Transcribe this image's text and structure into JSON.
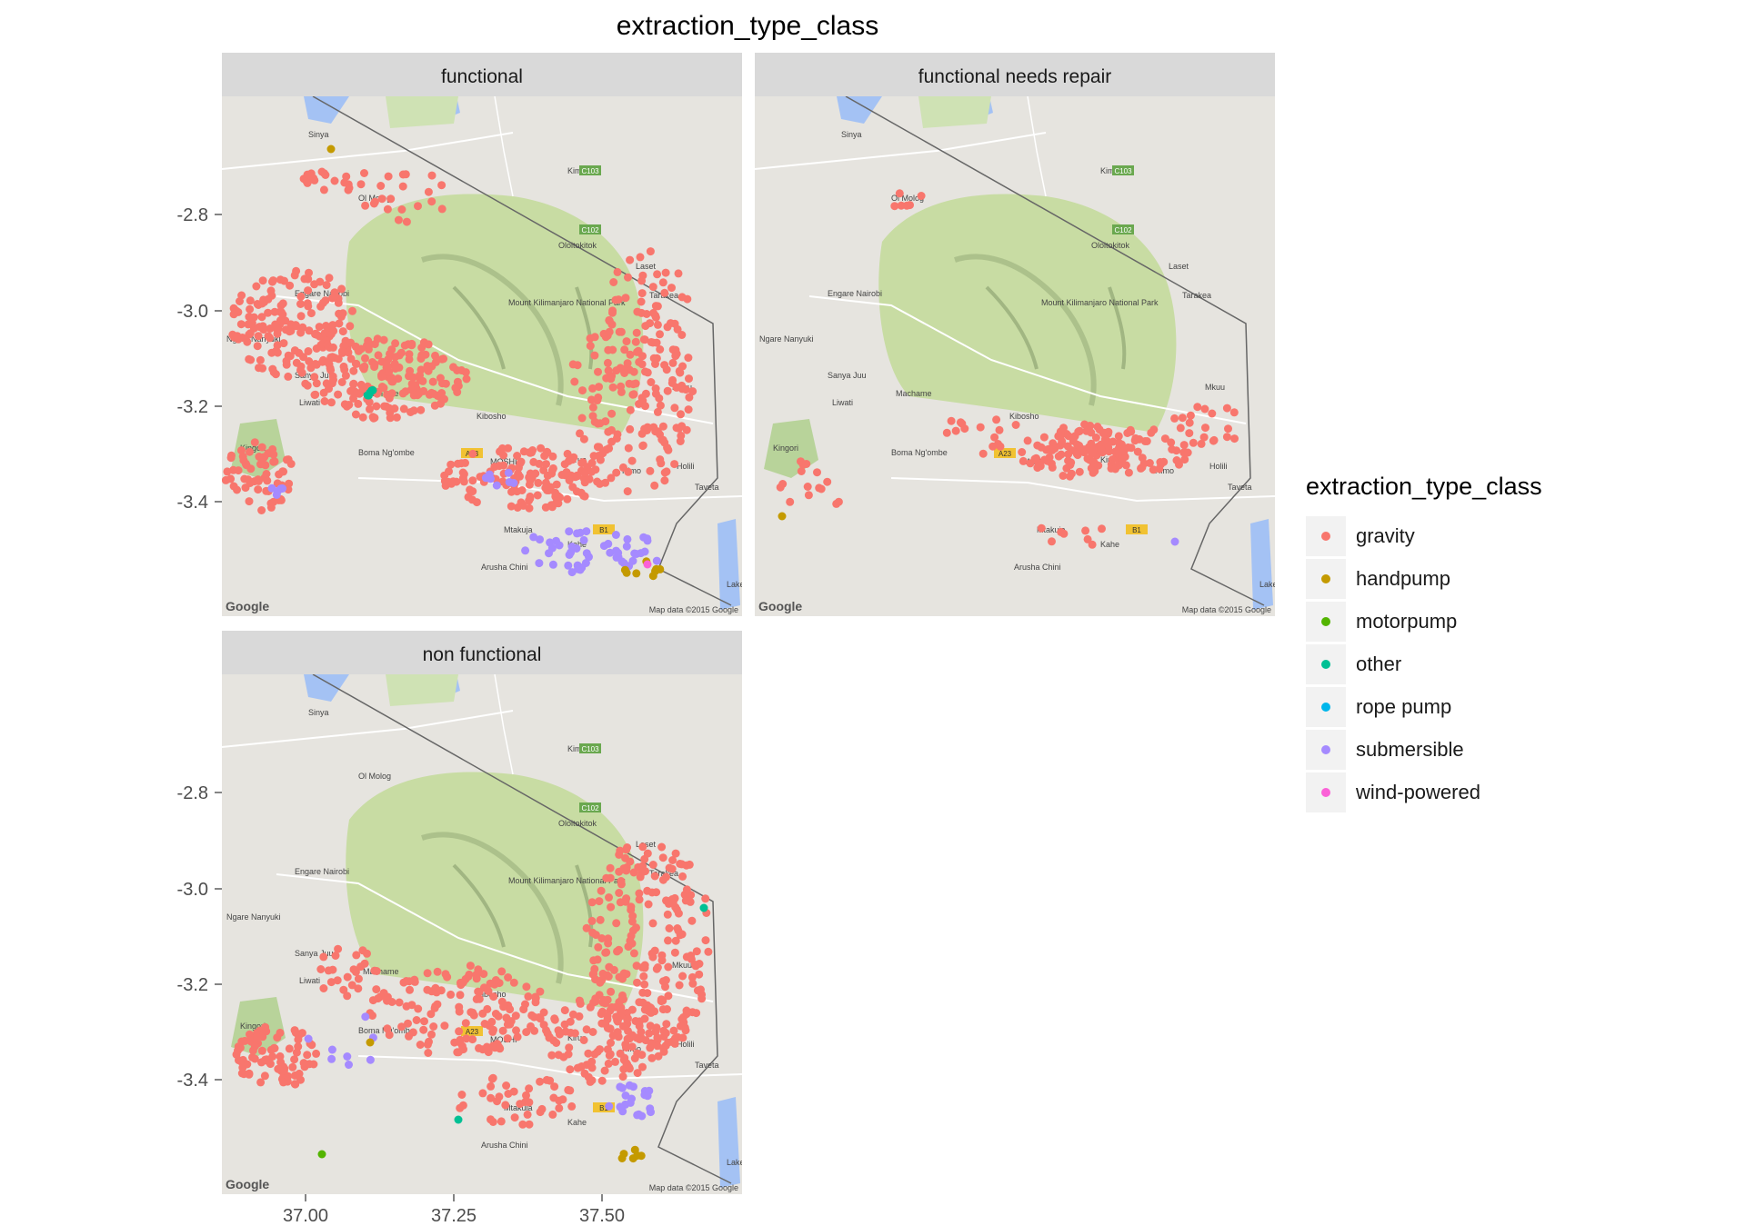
{
  "title": "extraction_type_class",
  "facets": [
    {
      "label": "functional"
    },
    {
      "label": "functional needs repair"
    },
    {
      "label": "non functional"
    }
  ],
  "axes": {
    "y_ticks": [
      "-2.8",
      "-3.0",
      "-3.2",
      "-3.4"
    ],
    "x_ticks": [
      "37.00",
      "37.25",
      "37.50"
    ]
  },
  "legend": {
    "title": "extraction_type_class",
    "entries": [
      {
        "label": "gravity",
        "color": "#F8766D"
      },
      {
        "label": "handpump",
        "color": "#C49A00"
      },
      {
        "label": "motorpump",
        "color": "#53B400"
      },
      {
        "label": "other",
        "color": "#00C094"
      },
      {
        "label": "rope pump",
        "color": "#00B6EB"
      },
      {
        "label": "submersible",
        "color": "#A58AFF"
      },
      {
        "label": "wind-powered",
        "color": "#FB61D7"
      }
    ]
  },
  "map": {
    "labels": [
      "Sinya",
      "Kimana",
      "Ol Molog",
      "Oloitokitok",
      "Laset",
      "Tarakea",
      "Engare Nairobi",
      "Ngare Nanyuki",
      "Mount Kilimanjaro National Park",
      "Sanya Juu",
      "Liwati",
      "Machame",
      "Kibosho",
      "Mkuu",
      "Kingori",
      "Boma Ng'ombe",
      "MOSHI",
      "Himo",
      "Kirua",
      "Holili",
      "Taveta",
      "Mtakuja",
      "Kahe",
      "Arusha Chini",
      "Lake"
    ],
    "road_labels": [
      "C103",
      "C102",
      "A23",
      "B1"
    ],
    "logo": "Google",
    "attribution": "Map data ©2015 Google"
  }
}
